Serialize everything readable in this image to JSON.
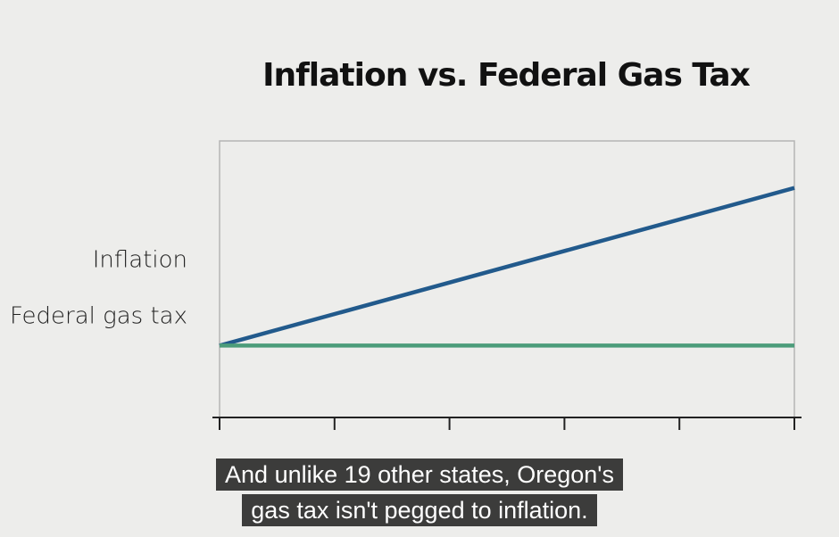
{
  "chart_data": {
    "type": "line",
    "title": "Inflation vs. Federal Gas Tax",
    "x": [
      0,
      5
    ],
    "xlim": [
      0,
      5
    ],
    "xticks": [
      0,
      1,
      2,
      3,
      4,
      5
    ],
    "ylim": [
      0,
      100
    ],
    "series": [
      {
        "name": "Inflation",
        "color": "#225a8c",
        "values": [
          26,
          83
        ]
      },
      {
        "name": "Federal gas tax",
        "color": "#4c9c7a",
        "values": [
          26,
          26
        ]
      }
    ]
  },
  "captions": [
    "And unlike 19 other states, Oregon's",
    "gas tax isn't pegged to inflation."
  ]
}
